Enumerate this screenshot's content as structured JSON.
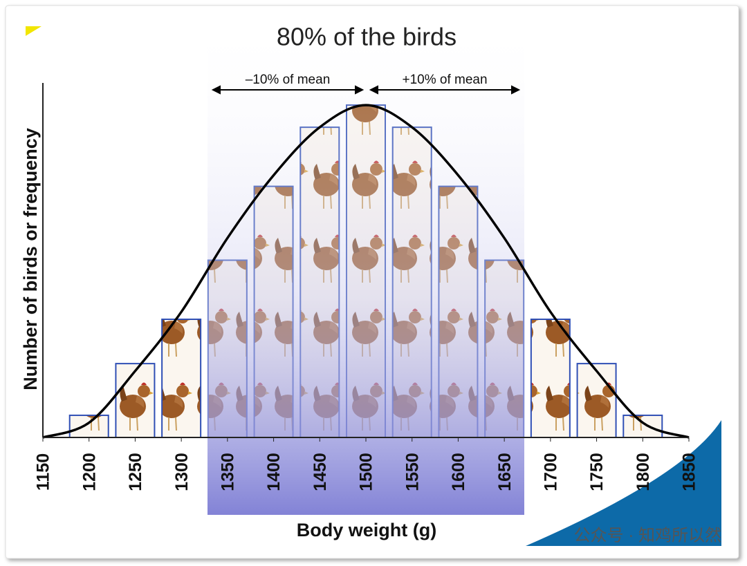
{
  "chart_data": {
    "type": "bar",
    "title": "80% of the birds",
    "annotations": [
      "–10% of mean",
      "+10% of mean"
    ],
    "x_label": "Body weight (g)",
    "y_label": "Number of birds or frequency",
    "watermark": "公众号 · 知鸡所以然",
    "x": [
      1200,
      1250,
      1300,
      1350,
      1400,
      1450,
      1500,
      1550,
      1600,
      1650,
      1700,
      1750,
      1800
    ],
    "values": [
      0.3,
      1,
      1.6,
      2.4,
      3.4,
      4.2,
      4.5,
      4.2,
      3.4,
      2.4,
      1.6,
      1,
      0.3
    ],
    "color": "#2f4fb5",
    "curve": {
      "color": "#000000",
      "x": [
        1150,
        1200,
        1250,
        1300,
        1350,
        1400,
        1450,
        1500,
        1550,
        1600,
        1650,
        1700,
        1750,
        1800,
        1850
      ],
      "values": [
        0,
        0.2,
        0.9,
        1.7,
        2.7,
        3.55,
        4.2,
        4.5,
        4.2,
        3.55,
        2.7,
        1.7,
        0.9,
        0.2,
        0
      ]
    },
    "xlim": [
      1150,
      1850
    ],
    "xticks": [
      1150,
      1200,
      1250,
      1300,
      1350,
      1400,
      1450,
      1500,
      1550,
      1600,
      1650,
      1700,
      1750,
      1800,
      1850
    ],
    "ylim": [
      0,
      4.8
    ]
  }
}
